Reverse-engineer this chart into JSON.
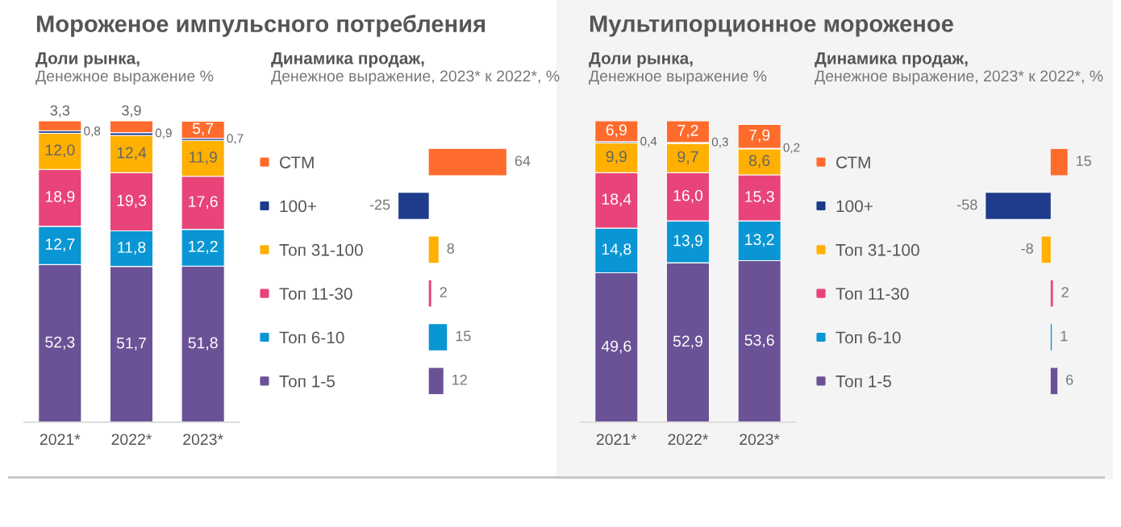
{
  "chart_data": [
    {
      "type": "bar",
      "title": "Мороженое импульсного потребления",
      "subtitle": "Доли рынка,",
      "annotations": [
        "Денежное выражение %"
      ],
      "categories": [
        "2021*",
        "2022*",
        "2023*"
      ],
      "stacked": true,
      "ylim": [
        0,
        100
      ],
      "tick_labels": "x",
      "series": [
        {
          "color": "#6b5296",
          "values": [
            52.3,
            51.7,
            51.8
          ],
          "value_labels": [
            "52,3",
            "51,7",
            "51,8"
          ]
        },
        {
          "color": "#0a96d4",
          "values": [
            12.7,
            11.8,
            12.2
          ],
          "value_labels": [
            "12,7",
            "11,8",
            "12,2"
          ]
        },
        {
          "color": "#e8447a",
          "values": [
            18.9,
            19.3,
            17.6
          ],
          "value_labels": [
            "18,9",
            "19,3",
            "17,6"
          ]
        },
        {
          "color": "#ffb000",
          "values": [
            12.0,
            12.4,
            11.9
          ],
          "value_labels": [
            "12,0",
            "12,4",
            "11,9"
          ]
        },
        {
          "color": "#1f3b8c",
          "values": [
            0.8,
            0.9,
            0.7
          ],
          "value_labels": [
            "0,8",
            "0,9",
            "0,7"
          ]
        },
        {
          "color": "#ff6b2c",
          "values": [
            3.3,
            3.9,
            5.7
          ],
          "value_labels": [
            "3,3",
            "3,9",
            "5,7"
          ]
        }
      ]
    },
    {
      "type": "bar",
      "orientation": "horizontal",
      "title": "Динамика продаж,",
      "annotations": [
        "Денежное выражение, 2023* к 2022*, %"
      ],
      "categories": [
        "СТМ",
        "100+",
        "Топ 31-100",
        "Топ 11-30",
        "Топ 6-10",
        "Топ 1-5"
      ],
      "values": [
        64,
        -25,
        8,
        2,
        15,
        12
      ],
      "colors": [
        "#ff6b2c",
        "#1f3b8c",
        "#ffb000",
        "#e8447a",
        "#0a96d4",
        "#6b5296"
      ],
      "data_labels": true,
      "tick_labels": "y"
    },
    {
      "type": "bar",
      "title": "Мультипорционное мороженое",
      "subtitle": "Доли рынка,",
      "annotations": [
        "Денежное выражение %"
      ],
      "categories": [
        "2021*",
        "2022*",
        "2023*"
      ],
      "stacked": true,
      "ylim": [
        0,
        100
      ],
      "tick_labels": "x",
      "series": [
        {
          "color": "#6b5296",
          "values": [
            49.6,
            52.9,
            53.6
          ],
          "value_labels": [
            "49,6",
            "52,9",
            "53,6"
          ]
        },
        {
          "color": "#0a96d4",
          "values": [
            14.8,
            13.9,
            13.2
          ],
          "value_labels": [
            "14,8",
            "13,9",
            "13,2"
          ]
        },
        {
          "color": "#e8447a",
          "values": [
            18.4,
            16.0,
            15.3
          ],
          "value_labels": [
            "18,4",
            "16,0",
            "15,3"
          ]
        },
        {
          "color": "#ffb000",
          "values": [
            9.9,
            9.7,
            8.6
          ],
          "value_labels": [
            "9,9",
            "9,7",
            "8,6"
          ]
        },
        {
          "color": "#1f3b8c",
          "values": [
            0.4,
            0.3,
            0.2
          ],
          "value_labels": [
            "0,4",
            "0,3",
            "0,2"
          ]
        },
        {
          "color": "#ff6b2c",
          "values": [
            6.9,
            7.2,
            7.9
          ],
          "value_labels": [
            "6,9",
            "7,2",
            "7,9"
          ]
        }
      ]
    },
    {
      "type": "bar",
      "orientation": "horizontal",
      "title": "Динамика продаж,",
      "annotations": [
        "Денежное выражение, 2023* к 2022*, %"
      ],
      "categories": [
        "СТМ",
        "100+",
        "Топ 31-100",
        "Топ 11-30",
        "Топ 6-10",
        "Топ 1-5"
      ],
      "values": [
        15,
        -58,
        -8,
        2,
        1,
        6
      ],
      "colors": [
        "#ff6b2c",
        "#1f3b8c",
        "#ffb000",
        "#e8447a",
        "#0a96d4",
        "#6b5296"
      ],
      "data_labels": true,
      "tick_labels": "y"
    }
  ]
}
